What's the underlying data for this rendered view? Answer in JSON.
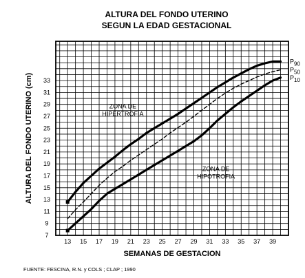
{
  "chart_data": {
    "type": "line",
    "title": "ALTURA DEL FONDO UTERINO",
    "subtitle": "SEGUN LA EDAD GESTACIONAL",
    "xlabel": "SEMANAS DE GESTACION",
    "ylabel": "ALTURA DEL FONDO UTERINO (cm)",
    "xlim": [
      11.5,
      41
    ],
    "ylim": [
      7,
      39.6
    ],
    "x_ticks": [
      "13",
      "15",
      "17",
      "19",
      "21",
      "23",
      "25",
      "27",
      "29",
      "31",
      "33",
      "35",
      "37",
      "39"
    ],
    "y_ticks": [
      "7",
      "9",
      "11",
      "13",
      "15",
      "17",
      "19",
      "21",
      "23",
      "25",
      "27",
      "29",
      "31",
      "33"
    ],
    "grid": true,
    "series": [
      {
        "name": "P90",
        "style": "solid-thick",
        "x": [
          13,
          14,
          15,
          16,
          17,
          18,
          19,
          20,
          21,
          22,
          23,
          24,
          25,
          26,
          27,
          28,
          29,
          30,
          31,
          32,
          33,
          34,
          35,
          36,
          37,
          38,
          39,
          40
        ],
        "y": [
          12.6,
          14.3,
          15.8,
          17.0,
          18.2,
          19.2,
          20.2,
          21.3,
          22.3,
          23.2,
          24.2,
          25.0,
          25.8,
          26.6,
          27.4,
          28.3,
          29.2,
          30.1,
          31.0,
          31.9,
          32.7,
          33.5,
          34.2,
          34.9,
          35.5,
          35.9,
          36.2,
          36.2
        ]
      },
      {
        "name": "P50",
        "style": "dashed",
        "x": [
          13,
          14,
          15,
          16,
          17,
          18,
          19,
          20,
          21,
          22,
          23,
          24,
          25,
          26,
          27,
          28,
          29,
          30,
          31,
          32,
          33,
          34,
          35,
          36,
          37,
          38,
          39,
          40
        ],
        "y": [
          9.8,
          11.3,
          12.6,
          14.0,
          15.4,
          16.6,
          17.7,
          18.6,
          19.6,
          20.5,
          21.4,
          22.3,
          23.2,
          24.2,
          25.1,
          26.0,
          27.0,
          28.0,
          29.0,
          30.0,
          30.9,
          31.7,
          32.4,
          33.0,
          33.6,
          34.1,
          34.5,
          34.8
        ]
      },
      {
        "name": "P10",
        "style": "solid-thick",
        "x": [
          13,
          14,
          15,
          16,
          17,
          18,
          19,
          20,
          21,
          22,
          23,
          24,
          25,
          26,
          27,
          28,
          29,
          30,
          31,
          32,
          33,
          34,
          35,
          36,
          37,
          38,
          39,
          40
        ],
        "y": [
          7.8,
          9.0,
          10.2,
          11.4,
          12.8,
          14.0,
          14.8,
          15.6,
          16.4,
          17.2,
          18.0,
          18.8,
          19.6,
          20.4,
          21.2,
          22.0,
          22.8,
          23.8,
          25.0,
          26.3,
          27.4,
          28.5,
          29.5,
          30.4,
          31.3,
          32.2,
          33.0,
          33.5
        ]
      }
    ],
    "percentile_labels": [
      {
        "base": "P",
        "sub": "90",
        "y": 36.2
      },
      {
        "base": "P",
        "sub": "50",
        "y": 34.8
      },
      {
        "base": "P",
        "sub": "10",
        "y": 33.5
      }
    ],
    "annotations": [
      {
        "line1": "ZONA  DE",
        "line2": "HIPERTROFIA",
        "x": 20,
        "y": 28.3
      },
      {
        "line1": "ZONA  DE",
        "line2": "HIPOTROFIA",
        "x": 31.8,
        "y": 17.8
      }
    ]
  },
  "source_note": "FUENTE: FESCINA, R.N. y COLS ; CLAP ; 1990"
}
